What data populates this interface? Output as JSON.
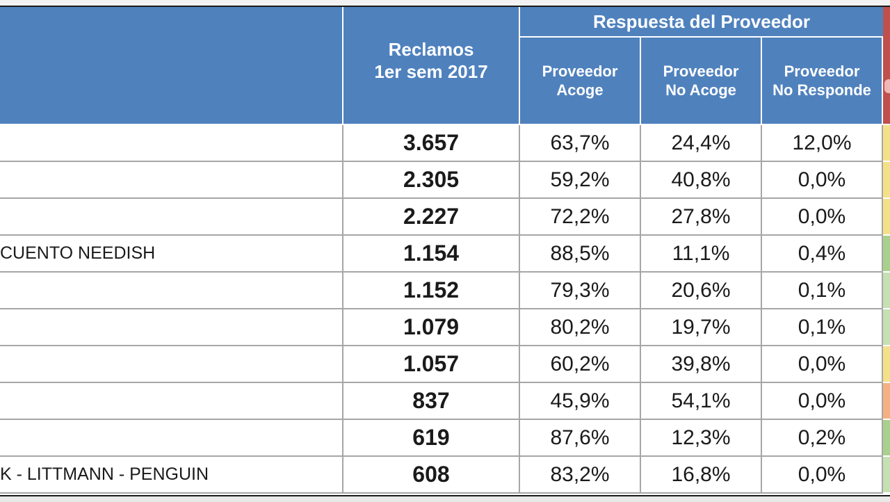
{
  "chart_data": {
    "type": "table",
    "header": {
      "reclamos_line1": "Reclamos",
      "reclamos_line2": "1er sem 2017",
      "group": "Respuesta del Proveedor",
      "col1_line1": "Proveedor",
      "col1_line2": "Acoge",
      "col2_line1": "Proveedor",
      "col2_line2": "No Acoge",
      "col3_line1": "Proveedor",
      "col3_line2": "No Responde"
    },
    "rows": [
      {
        "name": "",
        "reclamos": "3.657",
        "acoge": "63,7%",
        "no_acoge": "24,4%",
        "no_responde": "12,0%",
        "status_color": "#f5e08a"
      },
      {
        "name": "",
        "reclamos": "2.305",
        "acoge": "59,2%",
        "no_acoge": "40,8%",
        "no_responde": "0,0%",
        "status_color": "#f5e08a"
      },
      {
        "name": "",
        "reclamos": "2.227",
        "acoge": "72,2%",
        "no_acoge": "27,8%",
        "no_responde": "0,0%",
        "status_color": "#f5e08a"
      },
      {
        "name": "CUENTO NEEDISH",
        "reclamos": "1.154",
        "acoge": "88,5%",
        "no_acoge": "11,1%",
        "no_responde": "0,4%",
        "status_color": "#a9d18e"
      },
      {
        "name": "",
        "reclamos": "1.152",
        "acoge": "79,3%",
        "no_acoge": "20,6%",
        "no_responde": "0,1%",
        "status_color": "#c5e0b3"
      },
      {
        "name": "",
        "reclamos": "1.079",
        "acoge": "80,2%",
        "no_acoge": "19,7%",
        "no_responde": "0,1%",
        "status_color": "#c5e0b3"
      },
      {
        "name": "",
        "reclamos": "1.057",
        "acoge": "60,2%",
        "no_acoge": "39,8%",
        "no_responde": "0,0%",
        "status_color": "#f5e08a"
      },
      {
        "name": "",
        "reclamos": "837",
        "acoge": "45,9%",
        "no_acoge": "54,1%",
        "no_responde": "0,0%",
        "status_color": "#f4b183"
      },
      {
        "name": "",
        "reclamos": "619",
        "acoge": "87,6%",
        "no_acoge": "12,3%",
        "no_responde": "0,2%",
        "status_color": "#a9d18e"
      },
      {
        "name": "K - LITTMANN - PENGUIN",
        "reclamos": "608",
        "acoge": "83,2%",
        "no_acoge": "16,8%",
        "no_responde": "0,0%",
        "status_color": "#c5e0b3"
      }
    ]
  }
}
